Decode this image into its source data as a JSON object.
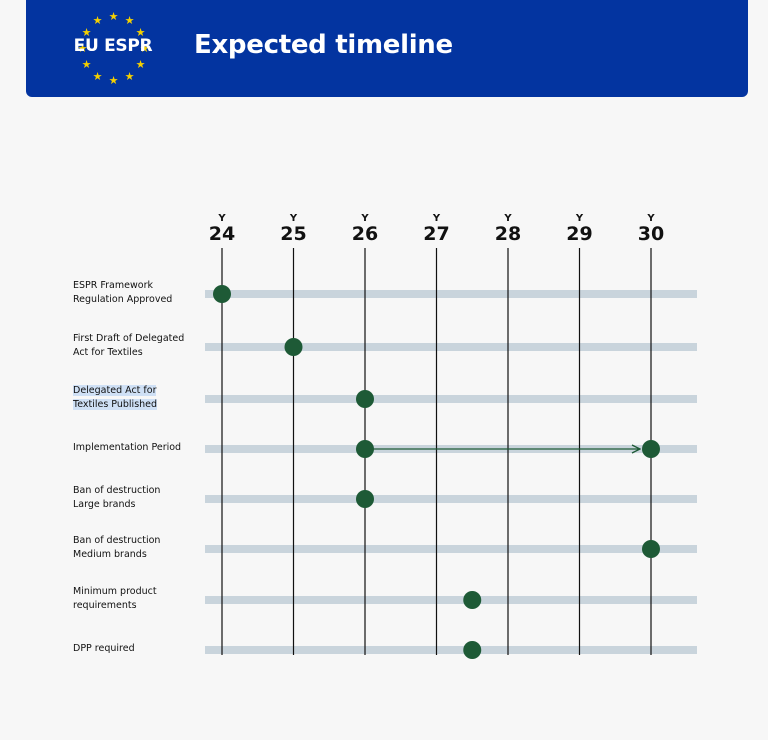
{
  "header": {
    "logo_text": "EU ESPR",
    "logo_icon": "eu-stars-icon",
    "title": "Expected timeline",
    "background": "#0334a0"
  },
  "chart_data": {
    "type": "timeline",
    "year_prefix": "Y",
    "years": [
      "24",
      "25",
      "26",
      "27",
      "28",
      "29",
      "30"
    ],
    "rows": [
      {
        "label": "ESPR Framework Regulation Approved",
        "lines": [
          "ESPR Framework",
          "Regulation Approved"
        ],
        "start": 24
      },
      {
        "label": "First Draft of Delegated Act for Textiles",
        "lines": [
          "First Draft of Delegated",
          "Act for Textiles"
        ],
        "start": 25
      },
      {
        "label": "Delegated Act for Textiles Published",
        "lines": [
          "Delegated Act for",
          "Textiles Published"
        ],
        "start": 26,
        "highlighted": true
      },
      {
        "label": "Implementation Period",
        "lines": [
          "Implementation Period"
        ],
        "start": 26,
        "end": 30
      },
      {
        "label": "Ban of destruction Large brands",
        "lines": [
          "Ban of destruction",
          "Large brands"
        ],
        "start": 26
      },
      {
        "label": "Ban of destruction Medium brands",
        "lines": [
          "Ban of destruction",
          "Medium brands"
        ],
        "start": 30
      },
      {
        "label": "Minimum product requirements",
        "lines": [
          "Minimum product",
          "requirements"
        ],
        "start": 27.5
      },
      {
        "label": "DPP required",
        "lines": [
          "DPP required"
        ],
        "start": 27.5
      }
    ],
    "colors": {
      "dot": "#1e5a36",
      "track": "#c9d4dc",
      "grid": "#111111"
    }
  }
}
